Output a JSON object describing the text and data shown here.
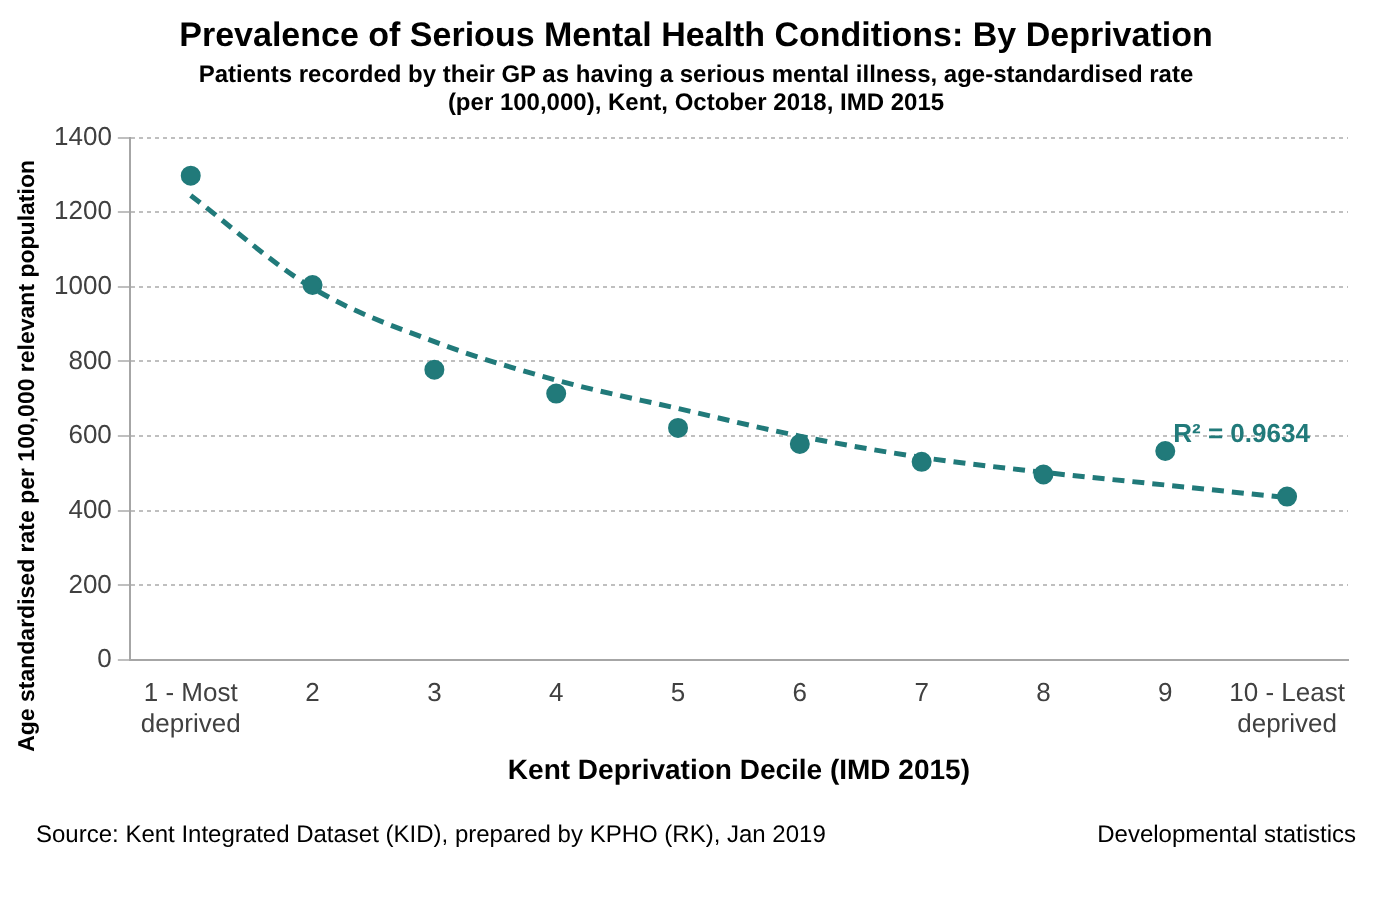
{
  "chart_data": {
    "type": "scatter",
    "title": "Prevalence of Serious Mental Health Conditions: By Deprivation",
    "subtitle": "Patients recorded by their GP as having a serious mental illness, age-standardised rate (per 100,000), Kent, October 2018, IMD 2015",
    "xlabel": "Kent Deprivation Decile (IMD 2015)",
    "ylabel": "Age standardised rate per 100,000 relevant population",
    "categories": [
      "1 - Most deprived",
      "2",
      "3",
      "4",
      "5",
      "6",
      "7",
      "8",
      "9",
      "10 - Least deprived"
    ],
    "series": [
      {
        "type": "scatter",
        "color": "#217a7a",
        "marker": "circle",
        "values": [
          1298,
          1005,
          778,
          714,
          622,
          579,
          531,
          497,
          560,
          438
        ]
      },
      {
        "type": "line",
        "color": "#217a7a",
        "marker": "none",
        "line_style": "dashed",
        "values": [
          1245,
          997,
          853,
          750,
          674,
          600,
          543,
          503,
          469,
          435
        ]
      }
    ],
    "ylim": [
      0,
      1400
    ],
    "yticks": [
      0,
      200,
      400,
      600,
      800,
      1000,
      1200,
      1400
    ],
    "grid": "y",
    "legend": false,
    "annotations": [
      {
        "text": "R² = 0.9634",
        "x": "9",
        "y": 600
      },
      "Source: Kent Integrated Dataset (KID), prepared by KPHO (RK), Jan 2019",
      "Developmental statistics"
    ]
  }
}
